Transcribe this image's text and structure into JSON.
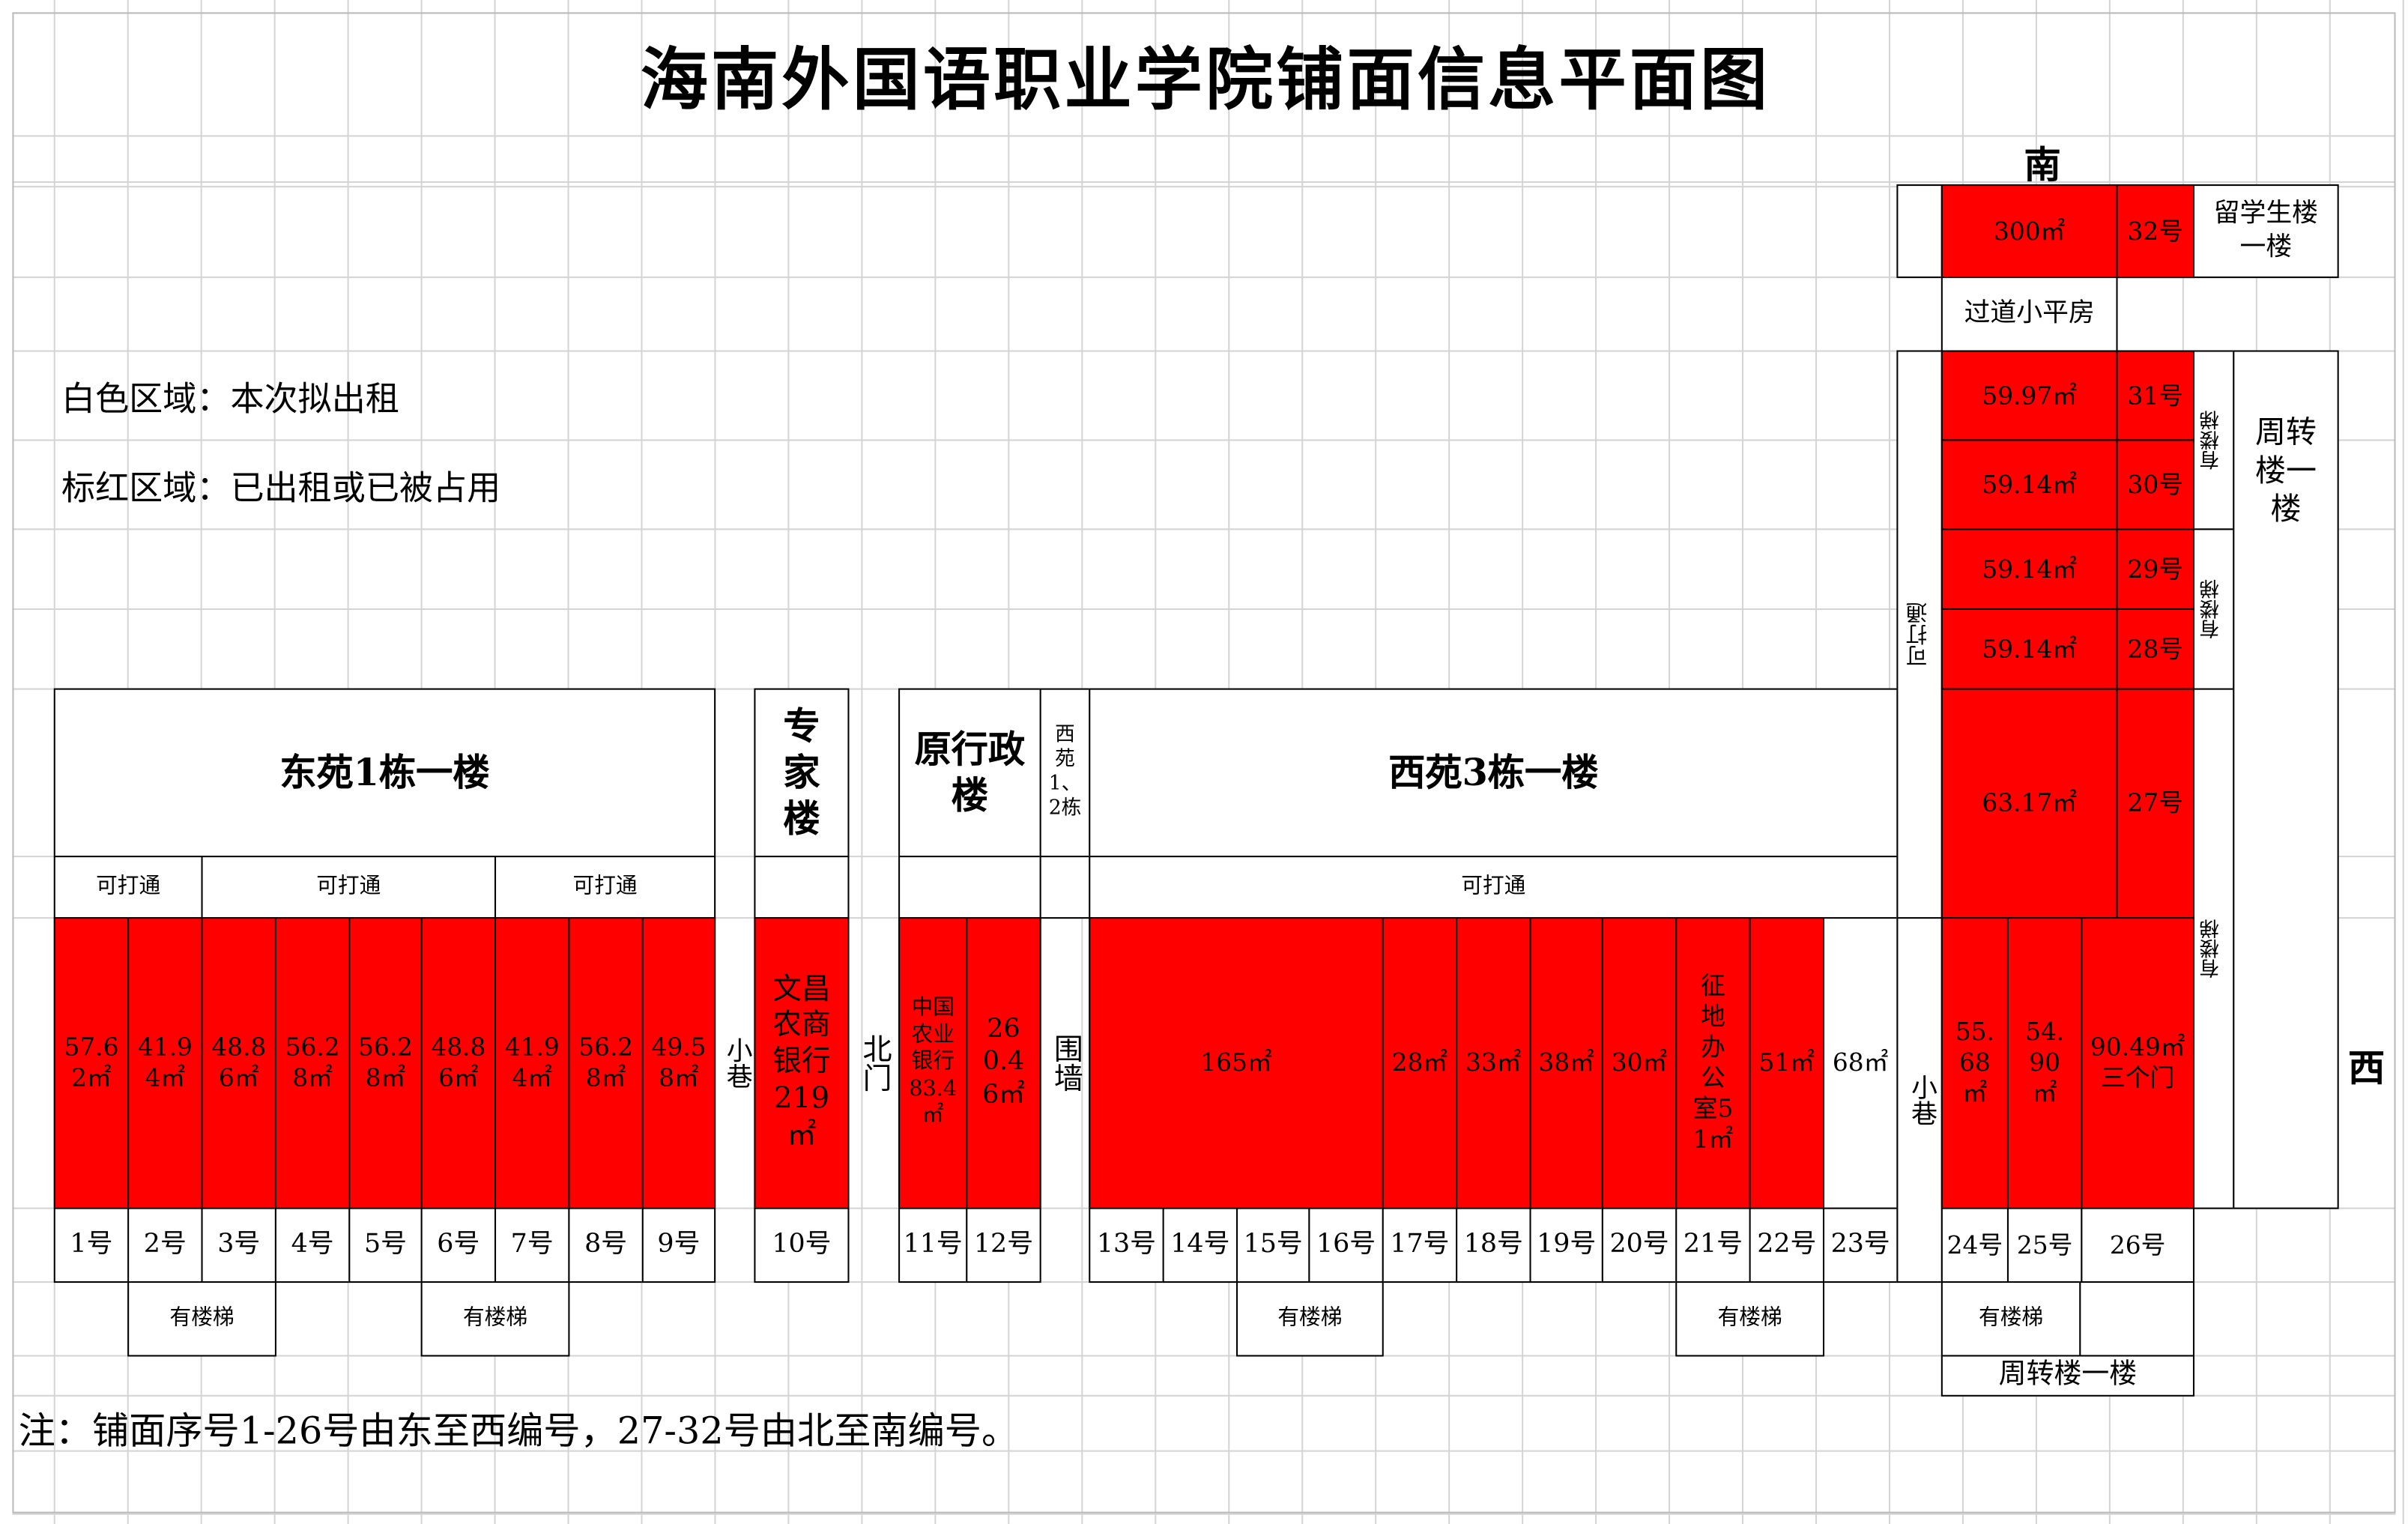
{
  "title": "海南外国语职业学院铺面信息平面图",
  "legend": {
    "white": "白色区域：本次拟出租",
    "red": "标红区域：已出租或已被占用"
  },
  "colors": {
    "occupied": "#ff0000",
    "available": "#ffffff"
  },
  "directions": {
    "south": "南",
    "west": "西"
  },
  "buildings": {
    "dongyuan1": "东苑1栋一楼",
    "expert": "专家楼",
    "admin": "原行政楼",
    "xiyuan12": "西苑1、2栋",
    "xiyuan3": "西苑3栋一楼",
    "zhouzhuan_side": "周转楼一楼",
    "zhouzhuan_bottom": "周转楼一楼",
    "liuxuesheng": "留学生楼一楼",
    "guodao": "过道小平房"
  },
  "labels": {
    "ketongda": "可打通",
    "stairs": "有楼梯",
    "alley": "小巷",
    "north_gate": "北门",
    "wall": "围墙"
  },
  "shops": [
    {
      "no": "1号",
      "area": "57.62㎡"
    },
    {
      "no": "2号",
      "area": "41.94㎡"
    },
    {
      "no": "3号",
      "area": "48.86㎡"
    },
    {
      "no": "4号",
      "area": "56.28㎡"
    },
    {
      "no": "5号",
      "area": "56.28㎡"
    },
    {
      "no": "6号",
      "area": "48.86㎡"
    },
    {
      "no": "7号",
      "area": "41.94㎡"
    },
    {
      "no": "8号",
      "area": "56.28㎡"
    },
    {
      "no": "9号",
      "area": "49.58㎡"
    },
    {
      "no": "10号",
      "area": "文昌农商银行219㎡"
    },
    {
      "no": "11号",
      "area": "中国农业银行83.4㎡"
    },
    {
      "no": "12号",
      "area": "260.46㎡"
    },
    {
      "no": "13号",
      "area": "165㎡"
    },
    {
      "no": "14号",
      "area": ""
    },
    {
      "no": "15号",
      "area": ""
    },
    {
      "no": "16号",
      "area": ""
    },
    {
      "no": "17号",
      "area": "28㎡"
    },
    {
      "no": "18号",
      "area": "33㎡"
    },
    {
      "no": "19号",
      "area": "38㎡"
    },
    {
      "no": "20号",
      "area": "30㎡"
    },
    {
      "no": "21号",
      "area": "征地办公室51㎡"
    },
    {
      "no": "22号",
      "area": "51㎡"
    },
    {
      "no": "23号",
      "area": "68㎡"
    },
    {
      "no": "24号",
      "area": "55.68㎡"
    },
    {
      "no": "25号",
      "area": "54.90㎡"
    },
    {
      "no": "26号",
      "area": "90.49㎡三个门"
    },
    {
      "no": "27号",
      "area": "63.17㎡"
    },
    {
      "no": "28号",
      "area": "59.14㎡"
    },
    {
      "no": "29号",
      "area": "59.14㎡"
    },
    {
      "no": "30号",
      "area": "59.14㎡"
    },
    {
      "no": "31号",
      "area": "59.97㎡"
    },
    {
      "no": "32号",
      "area": "300㎡"
    }
  ],
  "note": "注：铺面序号1-26号由东至西编号，27-32号由北至南编号。"
}
